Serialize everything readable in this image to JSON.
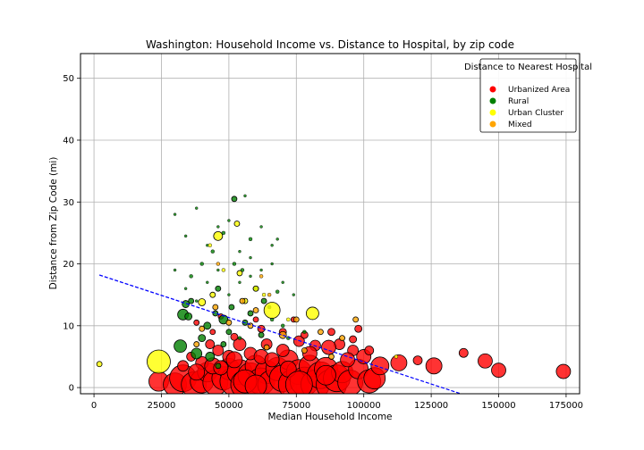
{
  "chart_data": {
    "type": "scatter",
    "title": "Washington: Household Income vs. Distance to Hospital, by zip code",
    "xlabel": "Median Household Income",
    "ylabel": "Distance from Zip Code (mi)",
    "xlim": [
      -5000,
      180000
    ],
    "ylim": [
      -1,
      54
    ],
    "xticks": [
      0,
      25000,
      50000,
      75000,
      100000,
      125000,
      150000,
      175000
    ],
    "yticks": [
      0,
      10,
      20,
      30,
      40,
      50
    ],
    "grid": true,
    "legend": {
      "title": "Distance to Nearest Hospital",
      "position": "top-right",
      "entries": [
        {
          "label": "Urbanized Area",
          "color": "#ff0000"
        },
        {
          "label": "Rural",
          "color": "#008000"
        },
        {
          "label": "Urban Cluster",
          "color": "#ffff00"
        },
        {
          "label": "Mixed",
          "color": "#ffa500"
        }
      ]
    },
    "trendline": {
      "color": "#0000ff",
      "style": "dashed",
      "x": [
        2000,
        136000
      ],
      "y": [
        18.2,
        -1
      ]
    },
    "series": [
      {
        "name": "Urbanized Area",
        "color": "#ff0000",
        "points": [
          [
            24000,
            1,
            11
          ],
          [
            30000,
            0.5,
            13
          ],
          [
            33000,
            1.5,
            15
          ],
          [
            37000,
            0.5,
            14
          ],
          [
            40000,
            1,
            13
          ],
          [
            42000,
            2.5,
            11
          ],
          [
            45000,
            0.8,
            14
          ],
          [
            48000,
            1.5,
            13
          ],
          [
            50000,
            3,
            12
          ],
          [
            52000,
            1,
            16
          ],
          [
            54000,
            2.5,
            14
          ],
          [
            56000,
            0.5,
            16
          ],
          [
            58000,
            2,
            14
          ],
          [
            60000,
            3.5,
            12
          ],
          [
            62000,
            1,
            15
          ],
          [
            64000,
            2.5,
            13
          ],
          [
            66000,
            0.5,
            16
          ],
          [
            68000,
            3,
            13
          ],
          [
            70000,
            1.5,
            15
          ],
          [
            72000,
            4.5,
            11
          ],
          [
            74000,
            0.5,
            17
          ],
          [
            76000,
            2.5,
            14
          ],
          [
            78000,
            1,
            16
          ],
          [
            80000,
            3.5,
            12
          ],
          [
            82000,
            0.5,
            16
          ],
          [
            84000,
            2,
            15
          ],
          [
            86000,
            3,
            13
          ],
          [
            88000,
            0.5,
            17
          ],
          [
            90000,
            1.5,
            15
          ],
          [
            92000,
            2.5,
            12
          ],
          [
            95000,
            0.8,
            14
          ],
          [
            98000,
            3,
            11
          ],
          [
            102000,
            1,
            13
          ],
          [
            104000,
            1.5,
            12
          ],
          [
            106000,
            3.5,
            10
          ],
          [
            100000,
            5,
            8
          ],
          [
            113000,
            4,
            9
          ],
          [
            126000,
            3.5,
            9
          ],
          [
            145000,
            4.3,
            8
          ],
          [
            150000,
            2.8,
            8
          ],
          [
            174000,
            2.6,
            8
          ],
          [
            137000,
            5.6,
            5
          ],
          [
            120000,
            4.4,
            5
          ],
          [
            102000,
            6,
            5
          ],
          [
            96000,
            6,
            6
          ],
          [
            91000,
            7,
            6
          ],
          [
            87000,
            6.5,
            8
          ],
          [
            82000,
            6.8,
            6
          ],
          [
            76000,
            7.5,
            6
          ],
          [
            70000,
            6,
            7
          ],
          [
            64000,
            7,
            6
          ],
          [
            58000,
            5.5,
            7
          ],
          [
            54000,
            7,
            7
          ],
          [
            50000,
            5,
            7
          ],
          [
            46000,
            6,
            6
          ],
          [
            43000,
            7,
            5
          ],
          [
            40000,
            4,
            7
          ],
          [
            36000,
            5,
            5
          ],
          [
            33000,
            3.5,
            6
          ],
          [
            38000,
            2.5,
            9
          ],
          [
            44000,
            3.5,
            9
          ],
          [
            52000,
            4.5,
            9
          ],
          [
            62000,
            5,
            8
          ],
          [
            72000,
            3,
            9
          ],
          [
            80000,
            5.5,
            8
          ],
          [
            94000,
            4.5,
            8
          ],
          [
            66000,
            4.5,
            8
          ],
          [
            86000,
            2,
            11
          ],
          [
            56000,
            1,
            13
          ],
          [
            47000,
            3.2,
            8
          ],
          [
            76000,
            0.5,
            15
          ],
          [
            60000,
            0.3,
            12
          ],
          [
            70000,
            9,
            4
          ],
          [
            78000,
            8.5,
            4
          ],
          [
            88000,
            9,
            4
          ],
          [
            96000,
            7.8,
            4
          ],
          [
            62000,
            9.5,
            4
          ],
          [
            52000,
            8.2,
            4
          ],
          [
            44000,
            9,
            3
          ],
          [
            38000,
            10.5,
            3
          ],
          [
            98000,
            9.5,
            4
          ],
          [
            60000,
            11,
            3
          ],
          [
            74000,
            11,
            3
          ],
          [
            47000,
            11.5,
            3
          ]
        ]
      },
      {
        "name": "Rural",
        "color": "#008000",
        "points": [
          [
            32000,
            6.7,
            7
          ],
          [
            33000,
            11.8,
            6
          ],
          [
            35000,
            11.5,
            4
          ],
          [
            34000,
            13.5,
            4
          ],
          [
            36000,
            14,
            3
          ],
          [
            38000,
            5.5,
            6
          ],
          [
            40000,
            8,
            4
          ],
          [
            43000,
            5,
            5
          ],
          [
            42000,
            10,
            4
          ],
          [
            45000,
            12,
            3
          ],
          [
            46000,
            16,
            3
          ],
          [
            48000,
            11,
            5
          ],
          [
            50000,
            9,
            3
          ],
          [
            51000,
            13,
            3
          ],
          [
            52000,
            30.5,
            3
          ],
          [
            55000,
            19,
            2
          ],
          [
            58000,
            12,
            3
          ],
          [
            60000,
            16,
            3
          ],
          [
            63000,
            14,
            3
          ],
          [
            65000,
            13,
            2
          ],
          [
            68000,
            15.5,
            2
          ],
          [
            70000,
            10,
            2
          ],
          [
            72000,
            8,
            2
          ],
          [
            78000,
            9,
            2
          ],
          [
            44000,
            22,
            2
          ],
          [
            48000,
            25,
            2
          ],
          [
            52000,
            20,
            2
          ],
          [
            58000,
            24,
            2
          ],
          [
            36000,
            18,
            2
          ],
          [
            40000,
            20,
            2
          ],
          [
            56000,
            10.5,
            3
          ],
          [
            62000,
            8.5,
            3
          ],
          [
            48000,
            7,
            3
          ],
          [
            54000,
            8,
            2
          ],
          [
            66000,
            11,
            2
          ],
          [
            46000,
            3.5,
            3
          ],
          [
            30000,
            28,
            1.5
          ],
          [
            34000,
            24.5,
            1.5
          ],
          [
            38000,
            29,
            1.5
          ],
          [
            42000,
            23,
            1.5
          ],
          [
            46000,
            26,
            1.5
          ],
          [
            50000,
            27,
            1.5
          ],
          [
            54000,
            22,
            1.5
          ],
          [
            58000,
            21,
            1.5
          ],
          [
            62000,
            26,
            1.5
          ],
          [
            66000,
            23,
            1.5
          ],
          [
            70000,
            17,
            1.5
          ],
          [
            74000,
            15,
            1.5
          ],
          [
            30000,
            19,
            1.5
          ],
          [
            34000,
            16,
            1.5
          ],
          [
            38000,
            14,
            1.5
          ],
          [
            42000,
            17,
            1.5
          ],
          [
            46000,
            19,
            1.5
          ],
          [
            50000,
            15,
            1.5
          ],
          [
            54000,
            17,
            1.5
          ],
          [
            58000,
            18,
            1.5
          ],
          [
            62000,
            19,
            1.5
          ],
          [
            66000,
            20,
            1.5
          ],
          [
            68000,
            24,
            1.5
          ],
          [
            56000,
            31,
            1.5
          ]
        ]
      },
      {
        "name": "Urban Cluster",
        "color": "#ffff00",
        "points": [
          [
            24000,
            4.2,
            13
          ],
          [
            66000,
            12.5,
            9
          ],
          [
            81000,
            12,
            7
          ],
          [
            46000,
            24.5,
            5
          ],
          [
            2000,
            3.8,
            3
          ],
          [
            40000,
            13.8,
            4
          ],
          [
            53000,
            26.5,
            3
          ],
          [
            60000,
            16,
            3
          ],
          [
            44000,
            15,
            3
          ],
          [
            56000,
            14,
            3
          ],
          [
            112000,
            5,
            2
          ],
          [
            48000,
            19,
            2
          ],
          [
            63000,
            15,
            2
          ],
          [
            72000,
            11,
            2
          ],
          [
            54000,
            18.5,
            3
          ],
          [
            43000,
            23,
            2
          ]
        ]
      },
      {
        "name": "Mixed",
        "color": "#ffa500",
        "points": [
          [
            70000,
            8.5,
            4
          ],
          [
            75000,
            11,
            3
          ],
          [
            78000,
            6,
            3
          ],
          [
            84000,
            9,
            3
          ],
          [
            92000,
            8,
            3
          ],
          [
            97000,
            11,
            3
          ],
          [
            60000,
            12.5,
            3
          ],
          [
            64000,
            6.5,
            3
          ],
          [
            55000,
            14,
            3
          ],
          [
            50000,
            10.5,
            3
          ],
          [
            45000,
            13,
            3
          ],
          [
            40000,
            9.5,
            3
          ],
          [
            65000,
            15,
            2
          ],
          [
            58000,
            10,
            3
          ],
          [
            88000,
            5,
            3
          ],
          [
            62000,
            18,
            2
          ],
          [
            38000,
            7,
            3
          ],
          [
            46000,
            20,
            2
          ]
        ]
      }
    ]
  }
}
